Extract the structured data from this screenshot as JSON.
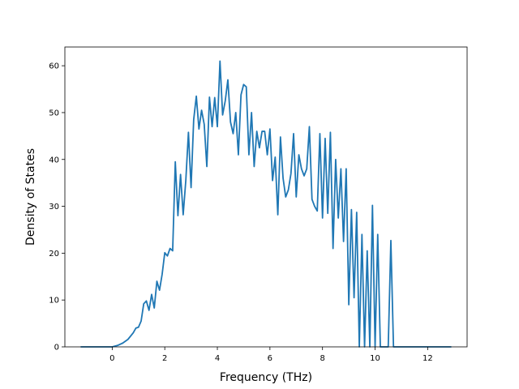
{
  "chart_data": {
    "type": "line",
    "title": "",
    "xlabel": "Frequency (THz)",
    "ylabel": "Density of States",
    "xlim": [
      -1.8,
      13.5
    ],
    "ylim": [
      0,
      64
    ],
    "xticks": [
      0,
      2,
      4,
      6,
      8,
      10,
      12
    ],
    "yticks": [
      0,
      10,
      20,
      30,
      40,
      50,
      60
    ],
    "grid": false,
    "line_color": "#1f77b4",
    "series": [
      {
        "x": [
          -1.2,
          -1.0,
          -0.8,
          -0.6,
          -0.4,
          -0.2,
          0.0,
          0.2,
          0.4,
          0.6,
          0.8,
          0.9,
          1.0,
          1.1,
          1.2,
          1.3,
          1.4,
          1.5,
          1.6,
          1.7,
          1.8,
          1.9,
          2.0,
          2.1,
          2.2,
          2.3,
          2.4,
          2.5,
          2.6,
          2.7,
          2.8,
          2.9,
          3.0,
          3.1,
          3.2,
          3.3,
          3.4,
          3.5,
          3.6,
          3.7,
          3.8,
          3.9,
          4.0,
          4.1,
          4.2,
          4.3,
          4.4,
          4.5,
          4.6,
          4.7,
          4.8,
          4.9,
          5.0,
          5.1,
          5.2,
          5.3,
          5.4,
          5.5,
          5.6,
          5.7,
          5.8,
          5.9,
          6.0,
          6.1,
          6.2,
          6.3,
          6.4,
          6.5,
          6.6,
          6.7,
          6.8,
          6.9,
          7.0,
          7.1,
          7.2,
          7.3,
          7.4,
          7.5,
          7.6,
          7.7,
          7.8,
          7.9,
          8.0,
          8.1,
          8.2,
          8.3,
          8.4,
          8.5,
          8.6,
          8.7,
          8.8,
          8.9,
          9.0,
          9.1,
          9.2,
          9.3,
          9.4,
          9.5,
          9.6,
          9.7,
          9.8,
          9.9,
          10.0,
          10.1,
          10.2,
          10.3,
          10.4,
          10.5,
          10.6,
          10.7,
          10.8,
          11.0,
          11.5,
          12.0,
          12.5,
          12.9
        ],
        "y": [
          0,
          0,
          0,
          0,
          0,
          0,
          0,
          0.3,
          0.8,
          1.6,
          3.0,
          4.0,
          4.2,
          5.5,
          9.2,
          9.8,
          7.8,
          11.2,
          8.3,
          14.0,
          12.1,
          15.5,
          20.1,
          19.4,
          21.0,
          20.5,
          39.5,
          28.0,
          36.8,
          28.2,
          35.5,
          45.8,
          34.0,
          48.5,
          53.5,
          46.5,
          50.5,
          47.5,
          38.5,
          53.3,
          47.0,
          53.2,
          47.0,
          61.0,
          49.5,
          52.5,
          57.0,
          48.0,
          45.5,
          50.0,
          41.0,
          53.8,
          56.0,
          55.5,
          41.0,
          50.0,
          38.5,
          46.0,
          42.5,
          46.0,
          46.0,
          41.0,
          46.5,
          35.5,
          40.5,
          28.2,
          44.8,
          36.0,
          32.0,
          33.5,
          37.0,
          45.5,
          32.0,
          41.0,
          38.0,
          36.5,
          38.0,
          47.0,
          31.5,
          30.0,
          29.0,
          45.5,
          27.5,
          44.5,
          28.5,
          45.8,
          21.0,
          40.0,
          27.5,
          38.0,
          22.5,
          38.0,
          9.0,
          29.3,
          10.5,
          28.7,
          0,
          24.0,
          0,
          20.5,
          0,
          30.2,
          0,
          24.0,
          0,
          0,
          0,
          0,
          22.7,
          0,
          0,
          0,
          0,
          0,
          0,
          0
        ]
      }
    ]
  }
}
